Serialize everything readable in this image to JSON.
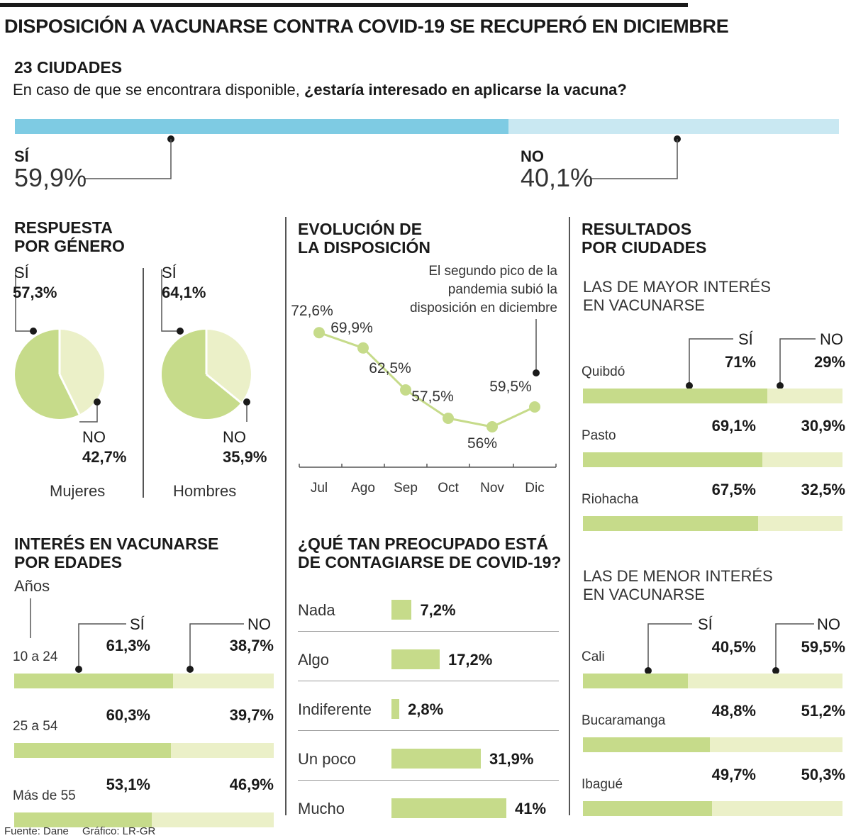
{
  "header": {
    "title": "DISPOSICIÓN A VACUNARSE CONTRA COVID-19 SE RECUPERÓ EN DICIEMBRE",
    "subtitle": "23 CIUDADES",
    "question_plain": "En caso de que se encontrara disponible, ",
    "question_bold": "¿estaría interesado en aplicarse la vacuna?"
  },
  "colors": {
    "blue_dark": "#7ecbe3",
    "blue_light": "#c9e8f2",
    "green_dark": "#c6db8a",
    "green_light": "#ebf0c8",
    "divider": "#555555"
  },
  "overall": {
    "si_label": "SÍ",
    "si_value_text": "59,9%",
    "si_value": 59.9,
    "no_label": "NO",
    "no_value_text": "40,1%",
    "no_value": 40.1
  },
  "gender": {
    "title_line1": "RESPUESTA",
    "title_line2": "POR GÉNERO",
    "women": {
      "si_label": "SÍ",
      "si_text": "57,3%",
      "si": 57.3,
      "no_label": "NO",
      "no_text": "42,7%",
      "no": 42.7,
      "name": "Mujeres"
    },
    "men": {
      "si_label": "SÍ",
      "si_text": "64,1%",
      "si": 64.1,
      "no_label": "NO",
      "no_text": "35,9%",
      "no": 35.9,
      "name": "Hombres"
    }
  },
  "evolution": {
    "title_line1": "EVOLUCIÓN DE",
    "title_line2": "LA DISPOSICIÓN",
    "note_line1": "El segundo pico de la",
    "note_line2": "pandemia subió la",
    "note_line3": "disposición en diciembre"
  },
  "cities": {
    "title_line1": "RESULTADOS",
    "title_line2": "POR CIUDADES",
    "top_title_line1": "LAS DE MAYOR INTERÉS",
    "top_title_line2": "EN VACUNARSE",
    "bottom_title_line1": "LAS DE MENOR INTERÉS",
    "bottom_title_line2": "EN VACUNARSE",
    "si_label": "SÍ",
    "no_label": "NO",
    "top": [
      {
        "name": "Quibdó",
        "si_text": "71%",
        "no_text": "29%",
        "si": 71
      },
      {
        "name": "Pasto",
        "si_text": "69,1%",
        "no_text": "30,9%",
        "si": 69.1
      },
      {
        "name": "Riohacha",
        "si_text": "67,5%",
        "no_text": "32,5%",
        "si": 67.5
      }
    ],
    "bottom": [
      {
        "name": "Cali",
        "si_text": "40,5%",
        "no_text": "59,5%",
        "si": 40.5
      },
      {
        "name": "Bucaramanga",
        "si_text": "48,8%",
        "no_text": "51,2%",
        "si": 48.8
      },
      {
        "name": "Ibagué",
        "si_text": "49,7%",
        "no_text": "50,3%",
        "si": 49.7
      }
    ]
  },
  "ages": {
    "title_line1": "INTERÉS EN VACUNARSE",
    "title_line2": "POR EDADES",
    "axis_label": "Años",
    "si_label": "SÍ",
    "no_label": "NO",
    "rows": [
      {
        "name": "10 a 24",
        "si_text": "61,3%",
        "no_text": "38,7%",
        "si": 61.3
      },
      {
        "name": "25 a 54",
        "si_text": "60,3%",
        "no_text": "39,7%",
        "si": 60.3
      },
      {
        "name": "Más de 55",
        "si_text": "53,1%",
        "no_text": "46,9%",
        "si": 53.1
      }
    ]
  },
  "worry": {
    "title_line1": "¿QUÉ TAN PREOCUPADO ESTÁ",
    "title_line2": "DE CONTAGIARSE DE COVID-19?"
  },
  "footer": {
    "source": "Fuente: Dane",
    "credit": "Gráfico: LR-GR"
  },
  "chart_data": [
    {
      "type": "line",
      "title": "EVOLUCIÓN DE LA DISPOSICIÓN",
      "categories": [
        "Jul",
        "Ago",
        "Sep",
        "Oct",
        "Nov",
        "Dic"
      ],
      "values": [
        72.6,
        69.9,
        62.5,
        57.5,
        56,
        59.5
      ],
      "value_labels": [
        "72,6%",
        "69,9%",
        "62,5%",
        "57,5%",
        "56%",
        "59,5%"
      ],
      "ylim": [
        50,
        75
      ],
      "xlabel": "",
      "ylabel": ""
    },
    {
      "type": "bar",
      "orientation": "horizontal",
      "title": "¿QUÉ TAN PREOCUPADO ESTÁ DE CONTAGIARSE DE COVID-19?",
      "categories": [
        "Nada",
        "Algo",
        "Indiferente",
        "Un poco",
        "Mucho"
      ],
      "values": [
        7.2,
        17.2,
        2.8,
        31.9,
        41
      ],
      "value_labels": [
        "7,2%",
        "17,2%",
        "2,8%",
        "31,9%",
        "41%"
      ],
      "xlim": [
        0,
        41
      ]
    }
  ]
}
